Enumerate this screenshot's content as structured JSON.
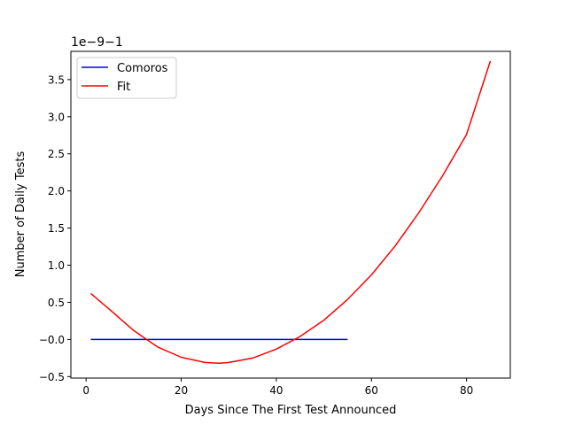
{
  "chart_data": {
    "type": "line",
    "xlabel": "Days Since The First Test Announced",
    "ylabel": "Number of Daily Tests",
    "offset_label": "1e−9−1",
    "xlim": [
      -3.2,
      89.2
    ],
    "ylim": [
      -0.52,
      3.88
    ],
    "x_ticks": [
      0,
      20,
      40,
      60,
      80
    ],
    "x_tick_labels": [
      "0",
      "20",
      "40",
      "60",
      "80"
    ],
    "y_ticks": [
      -0.5,
      0.0,
      0.5,
      1.0,
      1.5,
      2.0,
      2.5,
      3.0,
      3.5
    ],
    "y_tick_labels": [
      "−0.5",
      "−0.0",
      "0.5",
      "1.0",
      "1.5",
      "2.0",
      "2.5",
      "3.0",
      "3.5"
    ],
    "grid": false,
    "legend_position": "top-left",
    "series": [
      {
        "name": "Comoros",
        "color": "#0000ff",
        "x": [
          1,
          55
        ],
        "y": [
          0.0,
          0.0
        ]
      },
      {
        "name": "Fit",
        "color": "#ff0000",
        "x": [
          1,
          5,
          10,
          15,
          20,
          25,
          28,
          30,
          35,
          40,
          45,
          50,
          55,
          60,
          65,
          70,
          75,
          80,
          85
        ],
        "y": [
          0.62,
          0.4,
          0.12,
          -0.1,
          -0.24,
          -0.31,
          -0.32,
          -0.31,
          -0.25,
          -0.13,
          0.04,
          0.26,
          0.54,
          0.87,
          1.26,
          1.71,
          2.21,
          2.76,
          3.75
        ]
      }
    ]
  }
}
